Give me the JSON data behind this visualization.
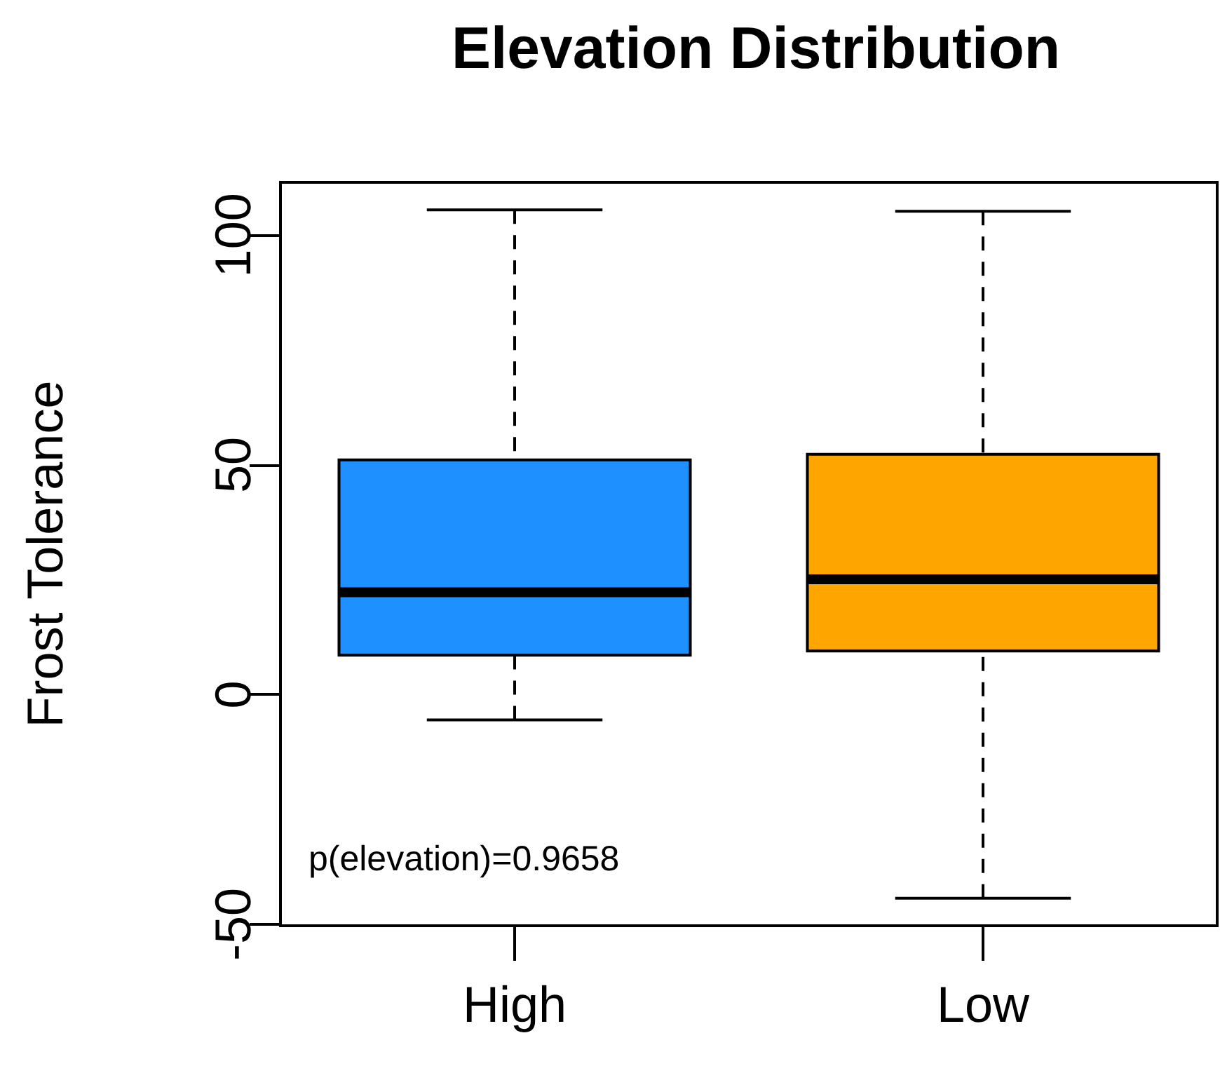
{
  "chart_data": {
    "type": "box",
    "title": "Elevation Distribution",
    "ylabel": "Frost Tolerance",
    "categories": [
      "High",
      "Low"
    ],
    "colors": [
      "#1e90ff",
      "#ffa500"
    ],
    "boxes": [
      {
        "low": -5.5,
        "q1": 8.6,
        "median": 22.3,
        "q3": 51.1,
        "high": 105.5
      },
      {
        "low": -44.3,
        "q1": 9.5,
        "median": 25.1,
        "q3": 52.3,
        "high": 105.2
      }
    ],
    "ylim": [
      -50.3,
      111.5
    ],
    "yticks": [
      -50,
      0,
      50,
      100
    ],
    "annotations": [
      "p(elevation)=0.9658"
    ]
  }
}
